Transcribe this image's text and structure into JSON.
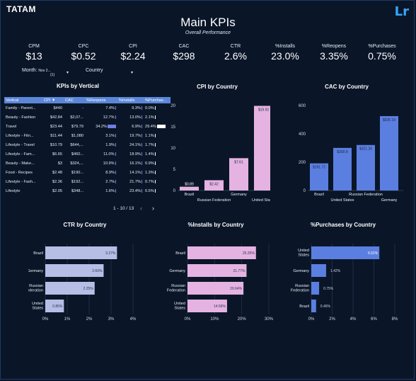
{
  "brand": "TATAM",
  "app_icon": "Lr",
  "title": "Main KPIs",
  "subtitle": "Overall Performance",
  "kpis": [
    {
      "label": "CPM",
      "value": "$13"
    },
    {
      "label": "CPC",
      "value": "$0.52"
    },
    {
      "label": "CPI",
      "value": "$2.24"
    },
    {
      "label": "CAC",
      "value": "$298"
    },
    {
      "label": "CTR",
      "value": "2.6%"
    },
    {
      "label": "%Installs",
      "value": "23.0%"
    },
    {
      "label": "%Reopens",
      "value": "3.35%"
    },
    {
      "label": "%Purchases",
      "value": "0.75%"
    }
  ],
  "filters": {
    "month_label": "Month:",
    "month_value": "Nov 2...",
    "month_count": "(1)",
    "country_label": "Country"
  },
  "table": {
    "title": "KPIs by Vertical",
    "headers": [
      "Vertical",
      "CPI ▼",
      "CAC",
      "%Reopens",
      "%Installs",
      "%Purchas..."
    ],
    "rows": [
      {
        "vertical": "Family - Parent...",
        "cpi": "$440",
        "cac": "-",
        "reopens": "7.4%",
        "installs": "9.3%",
        "purchases": "0.0%",
        "r": 0,
        "i": 0,
        "p": 0
      },
      {
        "vertical": "Beauty - Fashion",
        "cpi": "$42.84",
        "cac": "$2,07...",
        "reopens": "12.7%",
        "installs": "13.0%",
        "purchases": "2.1%",
        "r": 0.1,
        "i": 0,
        "p": 0.02
      },
      {
        "vertical": "Travel",
        "cpi": "$23.44",
        "cac": "$79.79",
        "reopens": "34.2%",
        "installs": "6.9%",
        "purchases": "29.4%",
        "r": 0.85,
        "i": 0,
        "p": 0.85
      },
      {
        "vertical": "Lifestyle - Fitn...",
        "cpi": "$11.44",
        "cac": "$1,080",
        "reopens": "3.1%",
        "installs": "19.7%",
        "purchases": "1.1%",
        "r": 0,
        "i": 0,
        "p": 0.02
      },
      {
        "vertical": "Lifestyle - Travel",
        "cpi": "$10.79",
        "cac": "$644,...",
        "reopens": "1.9%",
        "installs": "24.1%",
        "purchases": "1.7%",
        "r": 0,
        "i": 0,
        "p": 0.02
      },
      {
        "vertical": "Lifestyle - Fam...",
        "cpi": "$6.65",
        "cac": "$460...",
        "reopens": "11.0%",
        "installs": "18.9%",
        "purchases": "1.4%",
        "r": 0.1,
        "i": 0,
        "p": 0.02
      },
      {
        "vertical": "Beauty - Make...",
        "cpi": "$3",
        "cac": "$324,...",
        "reopens": "10.9%",
        "installs": "16.1%",
        "purchases": "0.9%",
        "r": 0.1,
        "i": 0,
        "p": 0.02
      },
      {
        "vertical": "Food - Recipes",
        "cpi": "$2.48",
        "cac": "$190...",
        "reopens": "8.9%",
        "installs": "14.1%",
        "purchases": "1.3%",
        "r": 0.05,
        "i": 0,
        "p": 0.02
      },
      {
        "vertical": "Lifestyle - Fash...",
        "cpi": "$2.36",
        "cac": "$192...",
        "reopens": "2.7%",
        "installs": "21.7%",
        "purchases": "0.7%",
        "r": 0,
        "i": 0,
        "p": 0.02
      },
      {
        "vertical": "Lifestyle",
        "cpi": "$2.05",
        "cac": "$348...",
        "reopens": "1.6%",
        "installs": "23.4%",
        "purchases": "0.5%",
        "r": 0,
        "i": 0,
        "p": 0.02
      }
    ],
    "pagination": "1 - 10 / 13",
    "prev": "‹",
    "next": "›"
  },
  "chart_data": [
    {
      "type": "bar",
      "title": "CPI by Country",
      "categories": [
        "Brazil",
        "Russian Federation",
        "Germany",
        "United States"
      ],
      "values": [
        0.89,
        2.42,
        7.61,
        19.92
      ],
      "labels": [
        "$0.89",
        "$2.42",
        "$7.61",
        "$19.92"
      ],
      "ylim": [
        0,
        20
      ],
      "yticks": [
        0,
        5,
        10,
        15,
        20
      ],
      "color": "#e5b3e2"
    },
    {
      "type": "bar",
      "title": "CAC by Country",
      "categories": [
        "Brazil",
        "United States",
        "Russian Federation",
        "Germany"
      ],
      "values": [
        191.72,
        300.8,
        321.26,
        525.19
      ],
      "labels": [
        "$191.72",
        "$300.8",
        "$321.26",
        "$525.19"
      ],
      "ylim": [
        0,
        600
      ],
      "yticks": [
        0,
        200,
        400,
        600
      ],
      "color": "#5b7fe0"
    },
    {
      "type": "hbar",
      "title": "CTR by Country",
      "categories": [
        "Brazil",
        "Germany",
        "Russian Federation",
        "United States"
      ],
      "values": [
        3.27,
        2.66,
        2.25,
        0.85
      ],
      "labels": [
        "3.27%",
        "2.66%",
        "2.25%",
        "0.85%"
      ],
      "xlim": [
        0,
        4
      ],
      "xticks": [
        "0%",
        "1%",
        "2%",
        "3%",
        "4%"
      ],
      "color": "#b6bee6"
    },
    {
      "type": "hbar",
      "title": "%Installs by Country",
      "categories": [
        "Brazil",
        "Germany",
        "Russian Federation",
        "United States"
      ],
      "values": [
        25.25,
        21.77,
        20.64,
        14.59
      ],
      "labels": [
        "25.25%",
        "21.77%",
        "20.64%",
        "14.59%"
      ],
      "xlim": [
        0,
        30
      ],
      "xticks": [
        "0%",
        "10%",
        "20%",
        "30%"
      ],
      "color": "#e5b3e2"
    },
    {
      "type": "hbar",
      "title": "%Purchases by Country",
      "categories": [
        "United States",
        "Germany",
        "Russian Federation",
        "Brazil"
      ],
      "values": [
        6.52,
        1.42,
        0.75,
        0.46
      ],
      "labels": [
        "6.52%",
        "1.42%",
        "0.75%",
        "0.46%"
      ],
      "xlim": [
        0,
        8
      ],
      "xticks": [
        "0%",
        "2%",
        "4%",
        "6%",
        "8%"
      ],
      "color": "#5b7fe0"
    }
  ]
}
